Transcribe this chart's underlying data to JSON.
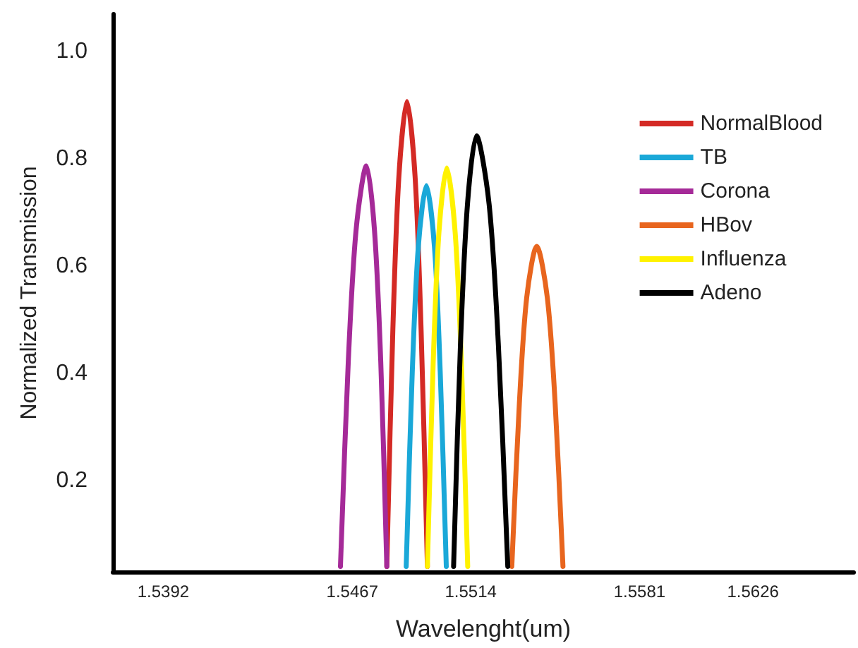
{
  "chart_data": {
    "type": "line",
    "xlabel": "Wavelenght(um)",
    "ylabel": "Normalized Transmission",
    "xlim": [
      1.5372,
      1.5666
    ],
    "xticks": [
      1.5392,
      1.5467,
      1.5514,
      1.5581,
      1.5626
    ],
    "ylim": [
      0.03,
      1.07
    ],
    "yticks": [
      0.2,
      0.4,
      0.6,
      {
        "value": 1,
        "label": "1.0"
      },
      0.8
    ],
    "grid": false,
    "legend": "right",
    "marker": "none",
    "line_style": "solid",
    "series": [
      {
        "name": "NormalBlood",
        "color": "#d42a25",
        "x": [
          1.54807,
          1.54831,
          1.54855,
          1.54887,
          1.54919,
          1.54943,
          1.54968
        ],
        "values": [
          0.04,
          0.482,
          0.768,
          0.907,
          0.768,
          0.482,
          0.04
        ]
      },
      {
        "name": "TB",
        "color": "#1aa8d8",
        "x": [
          1.54884,
          1.54908,
          1.54932,
          1.54964,
          1.54996,
          1.55019,
          1.55043
        ],
        "values": [
          0.04,
          0.402,
          0.636,
          0.75,
          0.636,
          0.402,
          0.04
        ]
      },
      {
        "name": "Corona",
        "color": "#a52a98",
        "x": [
          1.54623,
          1.54654,
          1.54685,
          1.54726,
          1.54758,
          1.54783,
          1.54807
        ],
        "values": [
          0.04,
          0.421,
          0.667,
          0.787,
          0.667,
          0.421,
          0.04
        ]
      },
      {
        "name": "HBov",
        "color": "#e8651e",
        "x": [
          1.55303,
          1.55333,
          1.55362,
          1.55402,
          1.55444,
          1.55475,
          1.55506
        ],
        "values": [
          0.04,
          0.344,
          0.541,
          0.637,
          0.541,
          0.344,
          0.04
        ]
      },
      {
        "name": "Influenza",
        "color": "#fff200",
        "x": [
          1.54968,
          1.54991,
          1.55014,
          1.55045,
          1.55078,
          1.55103,
          1.55128
        ],
        "values": [
          0.04,
          0.419,
          0.664,
          0.783,
          0.664,
          0.419,
          0.04
        ]
      },
      {
        "name": "Adeno",
        "color": "#000000",
        "x": [
          1.55072,
          1.55099,
          1.55127,
          1.55163,
          1.55213,
          1.5525,
          1.55287
        ],
        "values": [
          0.04,
          0.45,
          0.715,
          0.843,
          0.715,
          0.45,
          0.04
        ]
      }
    ]
  }
}
